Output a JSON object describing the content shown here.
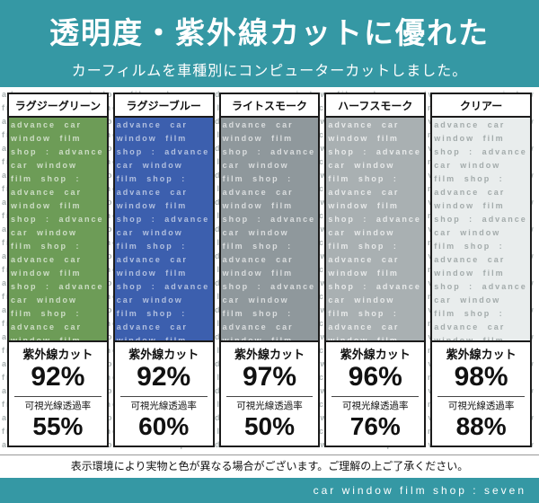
{
  "header": {
    "title": "透明度・紫外線カットに優れた",
    "subtitle": "カーフィルムを車種別にコンピューターカットしました。"
  },
  "watermark": {
    "unit": "advance car window film shop : ",
    "repeat": 140
  },
  "columns": [
    {
      "name": "ラグジーグリーン",
      "swatch_color": "#6d9c57",
      "swatch_text": "#ffffffa8",
      "uv_label": "紫外線カット",
      "uv_value": "92%",
      "vlt_label": "可視光線透過率",
      "vlt_value": "55%"
    },
    {
      "name": "ラグジーブルー",
      "swatch_color": "#3c5fae",
      "swatch_text": "#ffffff99",
      "uv_label": "紫外線カット",
      "uv_value": "92%",
      "vlt_label": "可視光線透過率",
      "vlt_value": "60%"
    },
    {
      "name": "ライトスモーク",
      "swatch_color": "#8f989c",
      "swatch_text": "#ffffffaa",
      "uv_label": "紫外線カット",
      "uv_value": "97%",
      "vlt_label": "可視光線透過率",
      "vlt_value": "50%"
    },
    {
      "name": "ハーフスモーク",
      "swatch_color": "#a9b0b2",
      "swatch_text": "#ffffffbb",
      "uv_label": "紫外線カット",
      "uv_value": "96%",
      "vlt_label": "可視光線透過率",
      "vlt_value": "76%"
    },
    {
      "name": "クリアー",
      "swatch_color": "#e9eded",
      "swatch_text": "#a3abab",
      "uv_label": "紫外線カット",
      "uv_value": "98%",
      "vlt_label": "可視光線透過率",
      "vlt_value": "88%"
    }
  ],
  "footer": {
    "disclaimer": "表示環境により実物と色が異なる場合がございます。ご理解の上ご了承ください。",
    "brand": "car window film shop : seven"
  },
  "colors": {
    "accent_teal": "#3598a4",
    "box_border": "#1b1b1b",
    "watermark_gray": "#a9b1b1"
  }
}
